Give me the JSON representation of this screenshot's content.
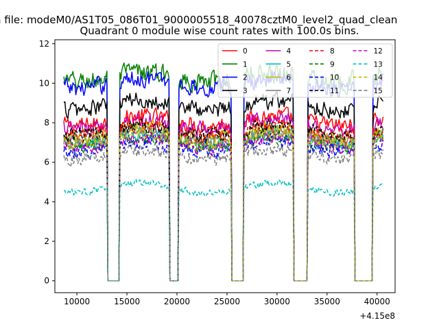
{
  "suptitle": "n file: modeM0/AS1T05_086T01_9000005518_40078cztM0_level2_quad_clean",
  "chart_data": {
    "type": "line",
    "title": "Quadrant 0 module wise count rates with 100.0s bins.",
    "xlabel": "",
    "ylabel": "",
    "x_offset_text": "+4.15e8",
    "xlim": [
      7800,
      41800
    ],
    "ylim": [
      -0.6,
      12.2
    ],
    "xticks": [
      10000,
      15000,
      20000,
      25000,
      30000,
      35000,
      40000
    ],
    "yticks": [
      0,
      2,
      4,
      6,
      8,
      10,
      12
    ],
    "grid": false,
    "legend": {
      "placement": "top-right",
      "columns": 4
    },
    "x_range": [
      8700,
      40600
    ],
    "bin": 100,
    "gaps": [
      [
        13100,
        14200
      ],
      [
        19300,
        20100
      ],
      [
        25500,
        26600
      ],
      [
        31700,
        33000
      ],
      [
        37800,
        39500
      ]
    ],
    "series": [
      {
        "name": "0",
        "color": "#ff0000",
        "dash": "solid",
        "level": 8.1,
        "noise": 0.55
      },
      {
        "name": "1",
        "color": "#008000",
        "dash": "solid",
        "level": 10.3,
        "noise": 0.7
      },
      {
        "name": "2",
        "color": "#0000ff",
        "dash": "solid",
        "level": 10.0,
        "noise": 0.6
      },
      {
        "name": "3",
        "color": "#000000",
        "dash": "solid",
        "level": 8.9,
        "noise": 0.6
      },
      {
        "name": "4",
        "color": "#bf00bf",
        "dash": "solid",
        "level": 7.9,
        "noise": 0.55
      },
      {
        "name": "5",
        "color": "#00bfbf",
        "dash": "solid",
        "level": 7.2,
        "noise": 0.5
      },
      {
        "name": "6",
        "color": "#bfbf00",
        "dash": "solid",
        "level": 7.5,
        "noise": 0.5
      },
      {
        "name": "7",
        "color": "#808080",
        "dash": "solid",
        "level": 7.3,
        "noise": 0.5
      },
      {
        "name": "8",
        "color": "#ff0000",
        "dash": "dashed",
        "level": 7.6,
        "noise": 0.5
      },
      {
        "name": "9",
        "color": "#008000",
        "dash": "dashed",
        "level": 7.0,
        "noise": 0.45
      },
      {
        "name": "10",
        "color": "#0000ff",
        "dash": "dashed",
        "level": 6.8,
        "noise": 0.55
      },
      {
        "name": "11",
        "color": "#000000",
        "dash": "dashed",
        "level": 7.6,
        "noise": 0.5
      },
      {
        "name": "12",
        "color": "#bf00bf",
        "dash": "dashed",
        "level": 7.0,
        "noise": 0.45
      },
      {
        "name": "13",
        "color": "#00bfbf",
        "dash": "dashed",
        "level": 4.7,
        "noise": 0.25
      },
      {
        "name": "14",
        "color": "#bfbf00",
        "dash": "dashed",
        "level": 7.2,
        "noise": 0.45
      },
      {
        "name": "15",
        "color": "#808080",
        "dash": "dashed",
        "level": 6.4,
        "noise": 0.45
      }
    ]
  }
}
